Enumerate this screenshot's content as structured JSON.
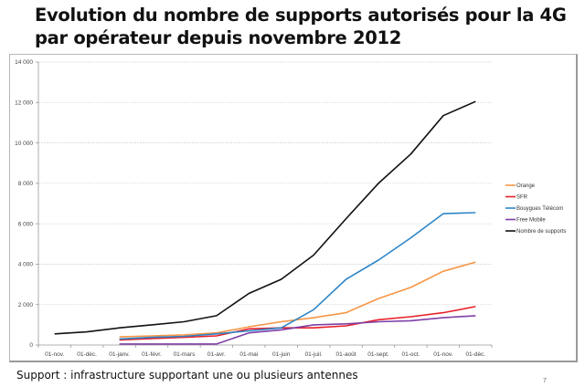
{
  "slide": {
    "title_line1": "Evolution du nombre de supports autorisés pour la 4G",
    "title_line2": "par opérateur depuis novembre 2012",
    "footnote": "Support : infrastructure supportant une ou plusieurs antennes",
    "page_number": "7"
  },
  "chart_data": {
    "type": "line",
    "title": "Evolution du nombre de supports autorisés pour la 4G par opérateur depuis novembre 2012",
    "xlabel": "",
    "ylabel": "",
    "categories": [
      "01-nov.",
      "01-déc.",
      "01-janv.",
      "01-févr.",
      "01-mars",
      "01-avr.",
      "01-mai",
      "01-juin",
      "01-juil.",
      "01-août",
      "01-sept.",
      "01-oct.",
      "01-nov.",
      "01-déc."
    ],
    "ylim": [
      0,
      14000
    ],
    "yticks": [
      0,
      2000,
      4000,
      6000,
      8000,
      10000,
      12000,
      14000
    ],
    "ytick_labels": [
      "0",
      "2 000",
      "4 000",
      "6 000",
      "8 000",
      "10 000",
      "12 000",
      "14 000"
    ],
    "grid": true,
    "legend_position": "right",
    "series": [
      {
        "name": "Orange",
        "color": "#f79646",
        "values": [
          null,
          null,
          400,
          450,
          500,
          600,
          900,
          1150,
          1350,
          1600,
          2300,
          2850,
          3650,
          4100
        ]
      },
      {
        "name": "SFR",
        "color": "#e8202a",
        "values": [
          null,
          null,
          250,
          320,
          380,
          450,
          800,
          850,
          850,
          950,
          1250,
          1400,
          1600,
          1900
        ]
      },
      {
        "name": "Bouygues Télécom",
        "color": "#2e86c8",
        "values": [
          null,
          null,
          300,
          380,
          430,
          550,
          700,
          850,
          1750,
          3250,
          4200,
          5300,
          6500,
          6550
        ]
      },
      {
        "name": "Free Mobile",
        "color": "#7f3fa6",
        "values": [
          null,
          null,
          50,
          50,
          50,
          50,
          600,
          750,
          1000,
          1050,
          1150,
          1200,
          1350,
          1450
        ]
      },
      {
        "name": "Nombre de supports",
        "color": "#111111",
        "values": [
          550,
          650,
          850,
          1000,
          1150,
          1450,
          2550,
          3250,
          4450,
          6250,
          8000,
          9450,
          11350,
          12050
        ]
      }
    ]
  }
}
